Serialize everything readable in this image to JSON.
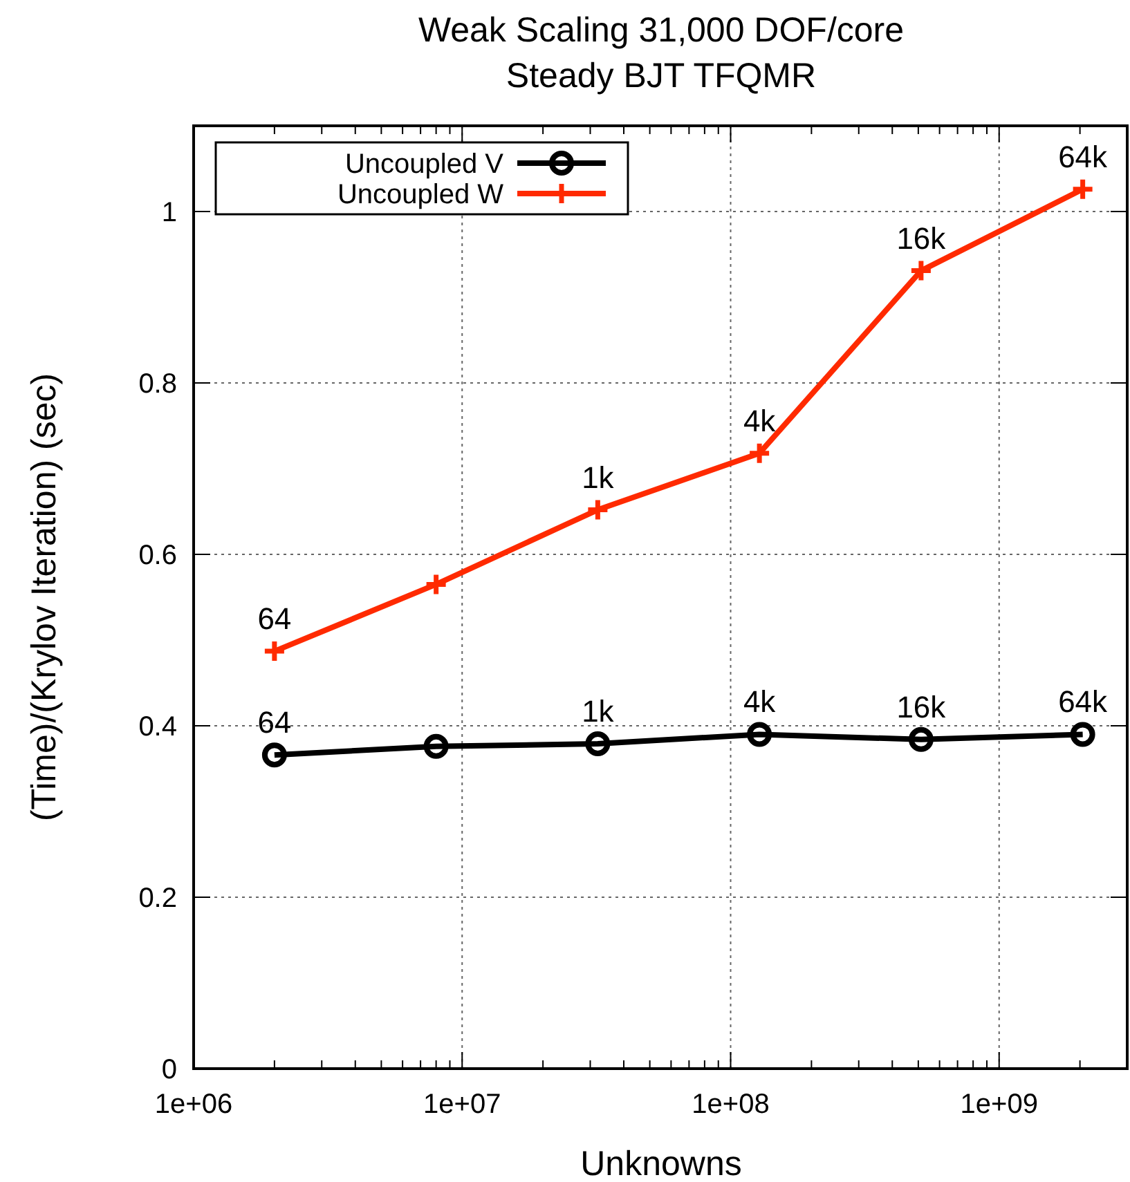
{
  "chart_data": {
    "type": "line",
    "title": "Weak Scaling 31,000 DOF/core",
    "subtitle": "Steady BJT TFQMR",
    "xlabel": "Unknowns",
    "ylabel": "(Time)/(Krylov Iteration) (sec)",
    "x": [
      2000000,
      8000000,
      32000000,
      128000000,
      512000000,
      2048000000
    ],
    "series": [
      {
        "name": "Uncoupled V",
        "color": "#000000",
        "marker": "circle",
        "values": [
          0.366,
          0.376,
          0.379,
          0.39,
          0.384,
          0.39
        ]
      },
      {
        "name": "Uncoupled W",
        "color": "#ff2a00",
        "marker": "cross",
        "values": [
          0.487,
          0.565,
          0.652,
          0.718,
          0.931,
          1.026
        ]
      }
    ],
    "annotations": [
      {
        "text": "64",
        "x": 2000000,
        "y": 0.366
      },
      {
        "text": "1k",
        "x": 32000000,
        "y": 0.379
      },
      {
        "text": "4k",
        "x": 128000000,
        "y": 0.39
      },
      {
        "text": "16k",
        "x": 512000000,
        "y": 0.384
      },
      {
        "text": "64k",
        "x": 2048000000,
        "y": 0.39
      },
      {
        "text": "64",
        "x": 2000000,
        "y": 0.487
      },
      {
        "text": "1k",
        "x": 32000000,
        "y": 0.652
      },
      {
        "text": "4k",
        "x": 128000000,
        "y": 0.718
      },
      {
        "text": "16k",
        "x": 512000000,
        "y": 0.931
      },
      {
        "text": "64k",
        "x": 2048000000,
        "y": 1.026
      }
    ],
    "log": "x",
    "xlim": [
      1000000,
      3000000000
    ],
    "xticks": [
      {
        "value": 1000000,
        "label": "1e+06"
      },
      {
        "value": 10000000,
        "label": "1e+07"
      },
      {
        "value": 100000000,
        "label": "1e+08"
      },
      {
        "value": 1000000000,
        "label": "1e+09"
      }
    ],
    "ylim": [
      0,
      1.1
    ],
    "yticks": [
      0,
      0.2,
      0.4,
      0.6,
      0.8,
      1
    ],
    "grid": true,
    "legend": "top left"
  }
}
